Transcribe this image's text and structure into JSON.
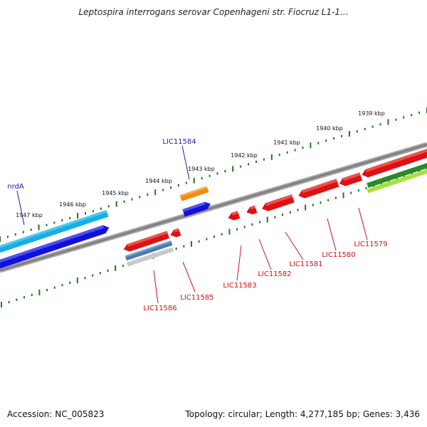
{
  "title": "Leptospira interrogans serovar Copenhageni str. Fiocruz L1-1...",
  "footer": {
    "accession": "Accession: NC_005823",
    "summary": "Topology: circular; Length: 4,277,185 bp; Genes: 3,436"
  },
  "colors": {
    "backbone": "#808080",
    "tick": "#1a7a1a",
    "label_forward": "#1a1aa8",
    "label_reverse": "#d01010",
    "gene_red": "#e01010",
    "gene_blue": "#1010e0",
    "gene_cyan": "#10b0e8",
    "gene_orange": "#f08a10",
    "gene_green": "#2a8a2a",
    "gene_lightgreen": "#a8e040",
    "gene_steel": "#4a7ab0"
  },
  "ticks": [
    {
      "label": "1939 kbp",
      "kbp": 1939
    },
    {
      "label": "1940 kbp",
      "kbp": 1940
    },
    {
      "label": "1941 kbp",
      "kbp": 1941
    },
    {
      "label": "1942 kbp",
      "kbp": 1942
    },
    {
      "label": "1943 kbp",
      "kbp": 1943
    },
    {
      "label": "1944 kbp",
      "kbp": 1944
    },
    {
      "label": "1945 kbp",
      "kbp": 1945
    },
    {
      "label": "1946 kbp",
      "kbp": 1946
    },
    {
      "label": "1947 kbp",
      "kbp": 1947
    }
  ],
  "gene_labels": [
    {
      "label": "nrdA",
      "strand": "forward"
    },
    {
      "label": "LIC11584",
      "strand": "forward"
    },
    {
      "label": "LIC11579",
      "strand": "reverse"
    },
    {
      "label": "LIC11580",
      "strand": "reverse"
    },
    {
      "label": "LIC11581",
      "strand": "reverse"
    },
    {
      "label": "LIC11582",
      "strand": "reverse"
    },
    {
      "label": "LIC11583",
      "strand": "reverse"
    },
    {
      "label": "LIC11585",
      "strand": "reverse"
    },
    {
      "label": "LIC11586",
      "strand": "reverse"
    }
  ]
}
